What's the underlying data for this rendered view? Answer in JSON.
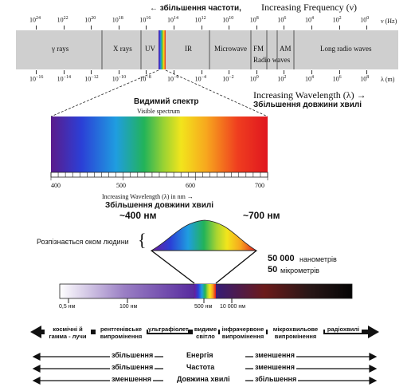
{
  "top_spectrum": {
    "freq_arrow_label": "збільшення частоти,",
    "freq_title": "Increasing Frequency (ν)",
    "freq_unit": "ν (Hz)",
    "freq_ticks": [
      {
        "base": "10",
        "exp": "24"
      },
      {
        "base": "10",
        "exp": "22"
      },
      {
        "base": "10",
        "exp": "20"
      },
      {
        "base": "10",
        "exp": "18"
      },
      {
        "base": "10",
        "exp": "16"
      },
      {
        "base": "10",
        "exp": "14"
      },
      {
        "base": "10",
        "exp": "12"
      },
      {
        "base": "10",
        "exp": "10"
      },
      {
        "base": "10",
        "exp": "8"
      },
      {
        "base": "10",
        "exp": "6"
      },
      {
        "base": "10",
        "exp": "4"
      },
      {
        "base": "10",
        "exp": "2"
      },
      {
        "base": "10",
        "exp": "0"
      }
    ],
    "bands": [
      "γ rays",
      "X rays",
      "UV",
      "IR",
      "Microwave",
      "FM",
      "AM",
      "Long radio waves"
    ],
    "radio_waves_label": "Radio waves",
    "wave_ticks": [
      {
        "base": "10",
        "exp": "−16"
      },
      {
        "base": "10",
        "exp": "−14"
      },
      {
        "base": "10",
        "exp": "−12"
      },
      {
        "base": "10",
        "exp": "−10"
      },
      {
        "base": "10",
        "exp": "−8"
      },
      {
        "base": "10",
        "exp": "−6"
      },
      {
        "base": "10",
        "exp": "−4"
      },
      {
        "base": "10",
        "exp": "−2"
      },
      {
        "base": "10",
        "exp": "0"
      },
      {
        "base": "10",
        "exp": "2"
      },
      {
        "base": "10",
        "exp": "4"
      },
      {
        "base": "10",
        "exp": "6"
      },
      {
        "base": "10",
        "exp": "8"
      }
    ],
    "wave_unit": "λ (m)",
    "wave_title": "Increasing Wavelength (λ) →",
    "wave_title_ua": "Збільшення довжини хвилі"
  },
  "visible": {
    "title_ua": "Видимий спектр",
    "title_en": "Visible spectrum",
    "ticks": [
      "400",
      "500",
      "600",
      "700"
    ],
    "axis_label": "Increasing Wavelength (λ) in nm →",
    "axis_label_ua": "Збільшення довжини хвилі"
  },
  "eye": {
    "nm400": "~400 нм",
    "nm700": "~700 нм",
    "perceived": "Розпізнається оком людини",
    "brace": "{",
    "nm50000": "50 000",
    "nm_word": "нанометрів",
    "um50": "50",
    "um_word": "мікрометрів"
  },
  "bar": {
    "ticks": [
      "0,5 нм",
      "100 нм",
      "500 нм",
      "10 000 нм"
    ]
  },
  "categories": [
    "космічні й гамма - лучи",
    "рентгенівське випромінення",
    "ультрафіолет",
    "видиме світло",
    "інфрачервоне випромінення",
    "мікрохвильове випромінення",
    "радіохвилі"
  ],
  "legend": {
    "rows": [
      {
        "left": "збільшення",
        "center": "Енергія",
        "right": "зменшення"
      },
      {
        "left": "збільшення",
        "center": "Частота",
        "right": "зменшення"
      },
      {
        "left": "зменшення",
        "center": "Довжина хвилі",
        "right": "збільшення"
      }
    ]
  }
}
